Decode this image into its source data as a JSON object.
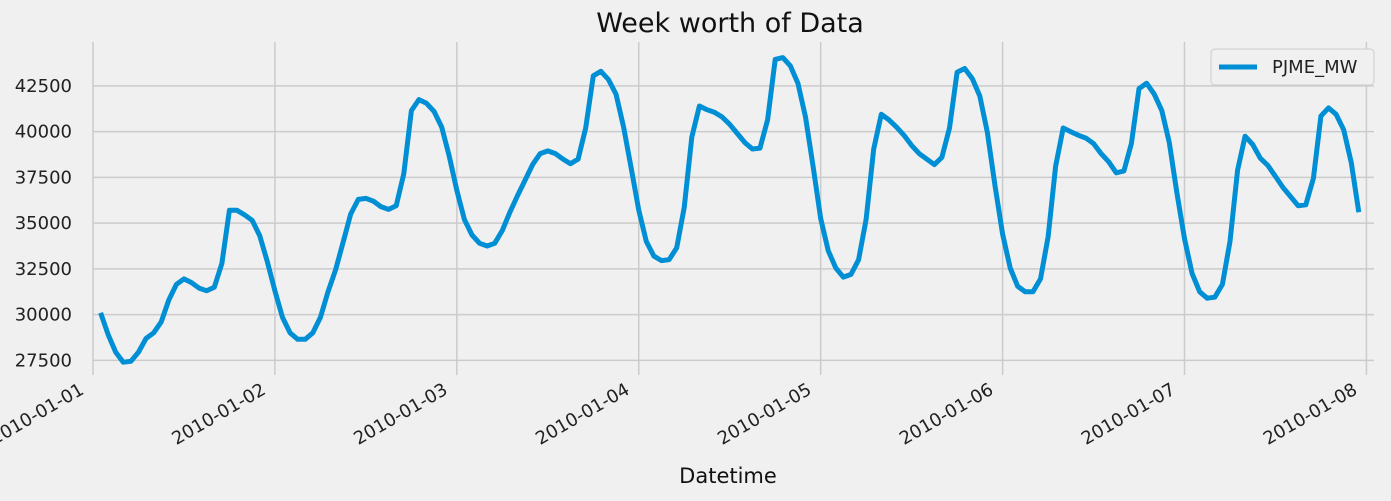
{
  "chart_data": {
    "type": "line",
    "title": "Week worth of Data",
    "xlabel": "Datetime",
    "ylabel": "",
    "grid": true,
    "legend_position": "top-right",
    "colors": {
      "background": "#f0f0f0",
      "grid": "#cbcbcb",
      "line": "#008fd5",
      "text": "#222222"
    },
    "x_ticks": [
      "2010-01-01",
      "2010-01-02",
      "2010-01-03",
      "2010-01-04",
      "2010-01-05",
      "2010-01-06",
      "2010-01-07",
      "2010-01-08"
    ],
    "y_ticks": [
      27500,
      30000,
      32500,
      35000,
      37500,
      40000,
      42500
    ],
    "ylim": [
      26700,
      44900
    ],
    "xlim": [
      "2010-01-01 00:00",
      "2010-01-08 01:00"
    ],
    "series": [
      {
        "name": "PJME_MW",
        "x_start": "2010-01-01 01:00",
        "x_step": "1 hour",
        "values": [
          30100,
          28900,
          27950,
          27400,
          27450,
          27950,
          28700,
          29000,
          29600,
          30800,
          31650,
          31950,
          31750,
          31450,
          31300,
          31500,
          32800,
          35700,
          35700,
          35450,
          35150,
          34300,
          32900,
          31300,
          29850,
          29000,
          28650,
          28650,
          29000,
          29850,
          31250,
          32450,
          33950,
          35500,
          36300,
          36350,
          36200,
          35900,
          35750,
          35950,
          37700,
          41150,
          41750,
          41550,
          41100,
          40250,
          38650,
          36800,
          35200,
          34350,
          33900,
          33750,
          33900,
          34600,
          35600,
          36500,
          37350,
          38200,
          38800,
          38950,
          38800,
          38500,
          38250,
          38500,
          40200,
          43050,
          43300,
          42850,
          42050,
          40250,
          38000,
          35700,
          34000,
          33200,
          32950,
          33000,
          33650,
          35850,
          39700,
          41400,
          41200,
          41050,
          40800,
          40400,
          39900,
          39400,
          39050,
          39100,
          40650,
          43950,
          44050,
          43600,
          42650,
          40800,
          38100,
          35250,
          33500,
          32550,
          32050,
          32200,
          33000,
          35200,
          39050,
          40950,
          40650,
          40250,
          39800,
          39250,
          38800,
          38500,
          38200,
          38600,
          40200,
          43250,
          43450,
          42900,
          41950,
          39950,
          37050,
          34400,
          32550,
          31550,
          31250,
          31250,
          31950,
          34250,
          38100,
          40200,
          40000,
          39800,
          39650,
          39350,
          38800,
          38350,
          37750,
          37850,
          39350,
          42350,
          42650,
          42050,
          41150,
          39400,
          36650,
          34150,
          32250,
          31250,
          30900,
          30950,
          31650,
          34000,
          37900,
          39750,
          39300,
          38550,
          38150,
          37550,
          36950,
          36450,
          35950,
          36000,
          37450,
          40850,
          41300,
          40950,
          40100,
          38300,
          35600
        ]
      }
    ]
  }
}
